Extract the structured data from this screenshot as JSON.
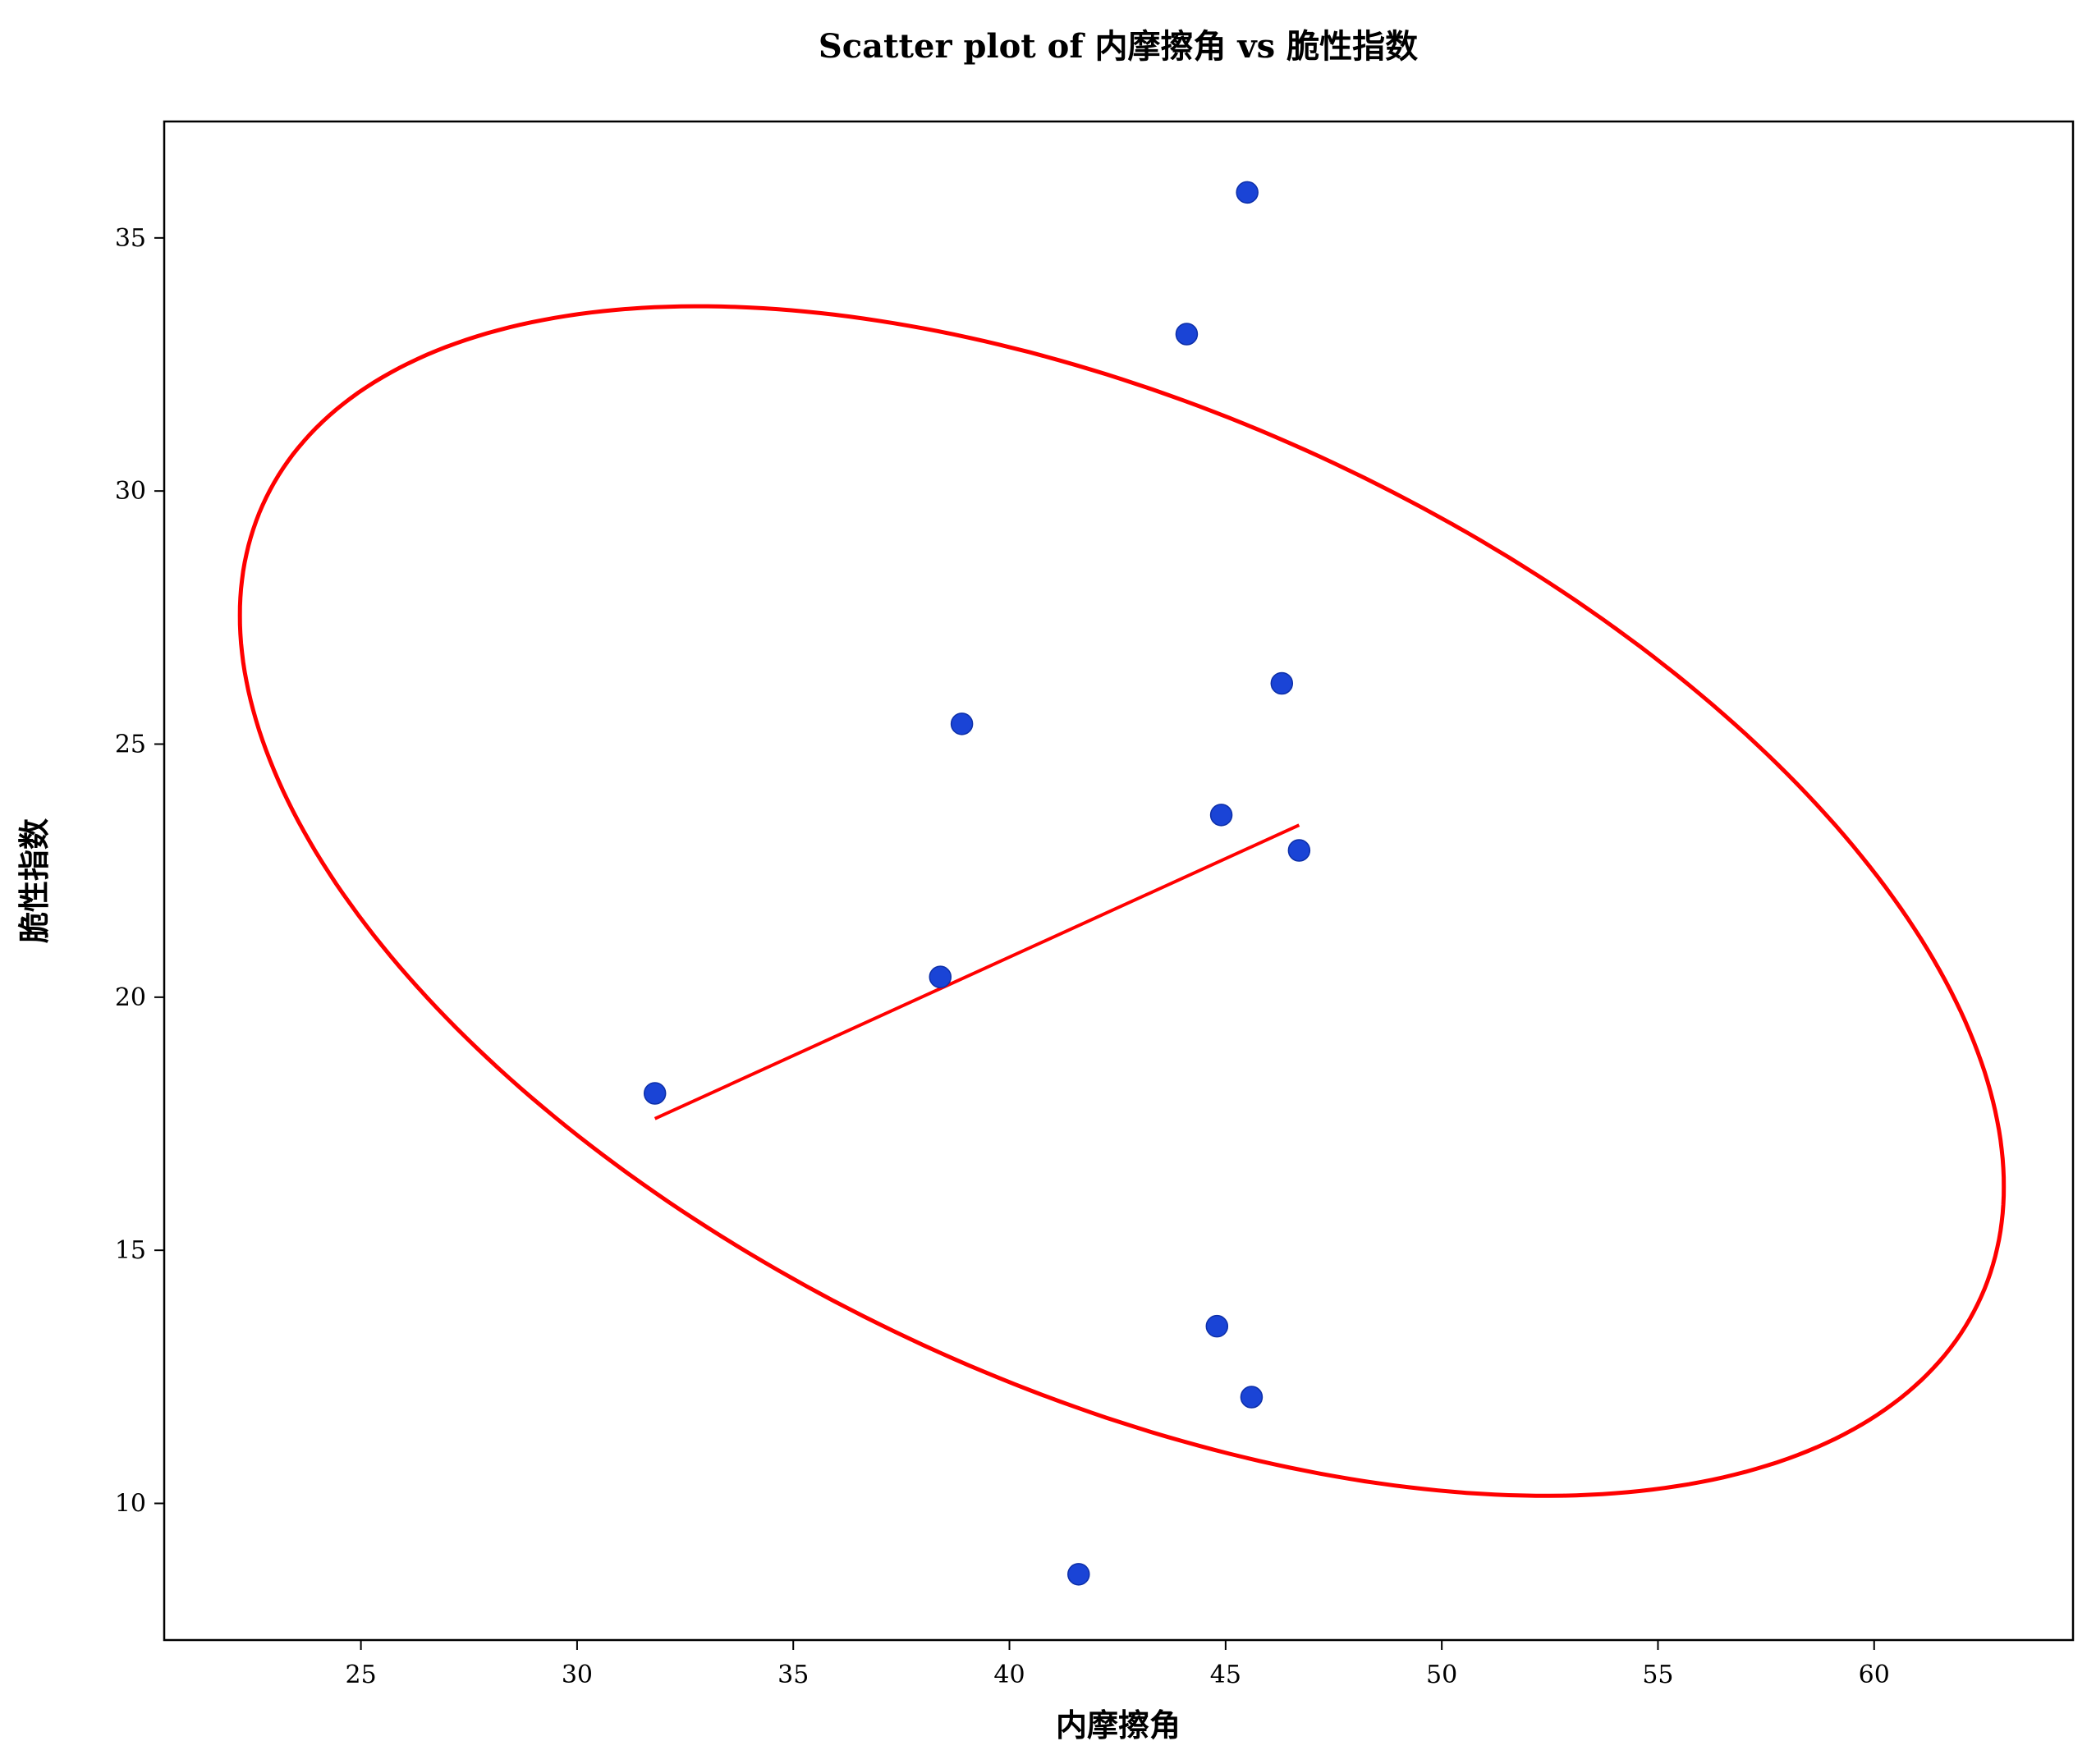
{
  "chart_data": {
    "type": "scatter",
    "title": "Scatter plot of 内摩擦角 vs 脆性指数",
    "xlabel": "内摩擦角",
    "ylabel": "脆性指数",
    "xlim": [
      20.45,
      64.6
    ],
    "ylim": [
      7.3,
      37.3
    ],
    "xticks": [
      25,
      30,
      35,
      40,
      45,
      50,
      55,
      60
    ],
    "yticks": [
      10,
      15,
      20,
      25,
      30,
      35
    ],
    "grid": false,
    "legend": "none",
    "points": [
      {
        "x": 45.5,
        "y": 35.9
      },
      {
        "x": 44.1,
        "y": 33.1
      },
      {
        "x": 46.3,
        "y": 26.2
      },
      {
        "x": 38.9,
        "y": 25.4
      },
      {
        "x": 44.9,
        "y": 23.6
      },
      {
        "x": 46.7,
        "y": 22.9
      },
      {
        "x": 38.4,
        "y": 20.4
      },
      {
        "x": 31.8,
        "y": 18.1
      },
      {
        "x": 44.8,
        "y": 13.5
      },
      {
        "x": 45.6,
        "y": 12.1
      },
      {
        "x": 41.6,
        "y": 8.6
      }
    ],
    "fit_line": {
      "x": [
        31.8,
        46.7
      ],
      "y": [
        17.6,
        23.4
      ]
    },
    "ellipse": {
      "cx": 42.6,
      "cy": 21.9,
      "x_min": 22.2,
      "x_max": 63.0,
      "y_min": 10.1,
      "y_max": 33.6
    },
    "colors": {
      "points": "#1a44d6",
      "fit_line": "#ff0000",
      "ellipse": "#ff0000",
      "axes": "#000000"
    }
  }
}
